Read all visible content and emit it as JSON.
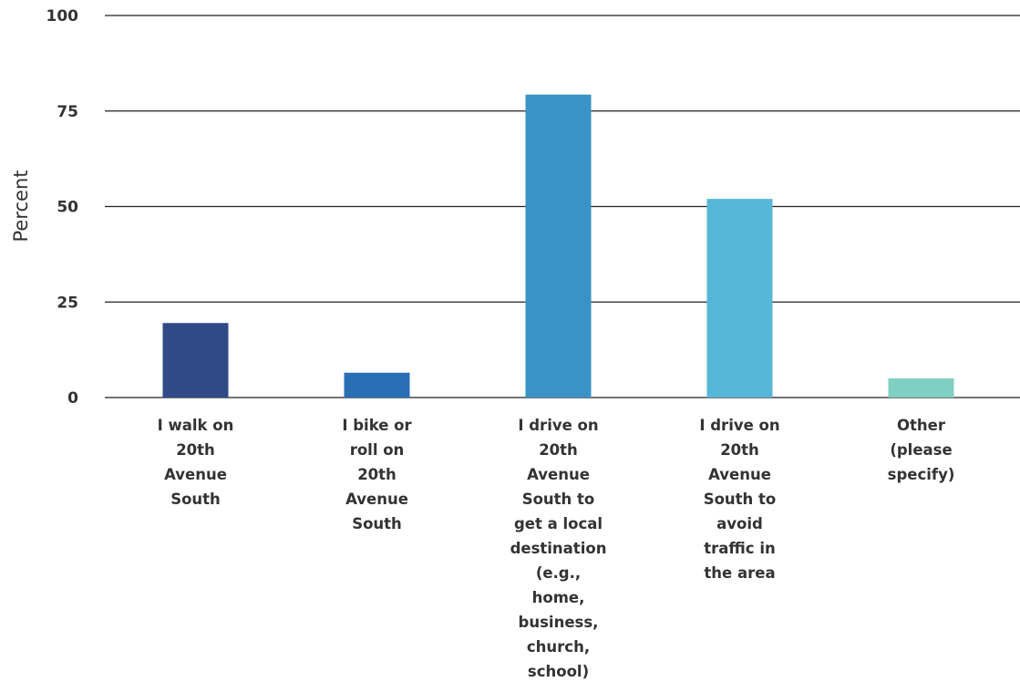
{
  "chart_data": {
    "type": "bar",
    "title": "",
    "xlabel": "",
    "ylabel": "Percent",
    "ylim": [
      0,
      100
    ],
    "yticks": [
      0,
      25,
      50,
      75,
      100
    ],
    "grid": true,
    "categories": [
      [
        "I walk on",
        "20th",
        "Avenue",
        "South"
      ],
      [
        "I bike or",
        "roll on",
        "20th",
        "Avenue",
        "South"
      ],
      [
        "I drive on",
        "20th",
        "Avenue",
        "South to",
        "get a local",
        "destination",
        "(e.g.,",
        "home,",
        "business,",
        "church,",
        "school)"
      ],
      [
        "I drive on",
        "20th",
        "Avenue",
        "South to",
        "avoid",
        "traffic in",
        "the area"
      ],
      [
        "Other",
        "(please",
        "specify)"
      ]
    ],
    "values": [
      19.5,
      6.5,
      79.3,
      52,
      5
    ],
    "colors": [
      "#2f4a87",
      "#2a6fb5",
      "#3a93c7",
      "#57b7d8",
      "#7fcfc2"
    ]
  }
}
